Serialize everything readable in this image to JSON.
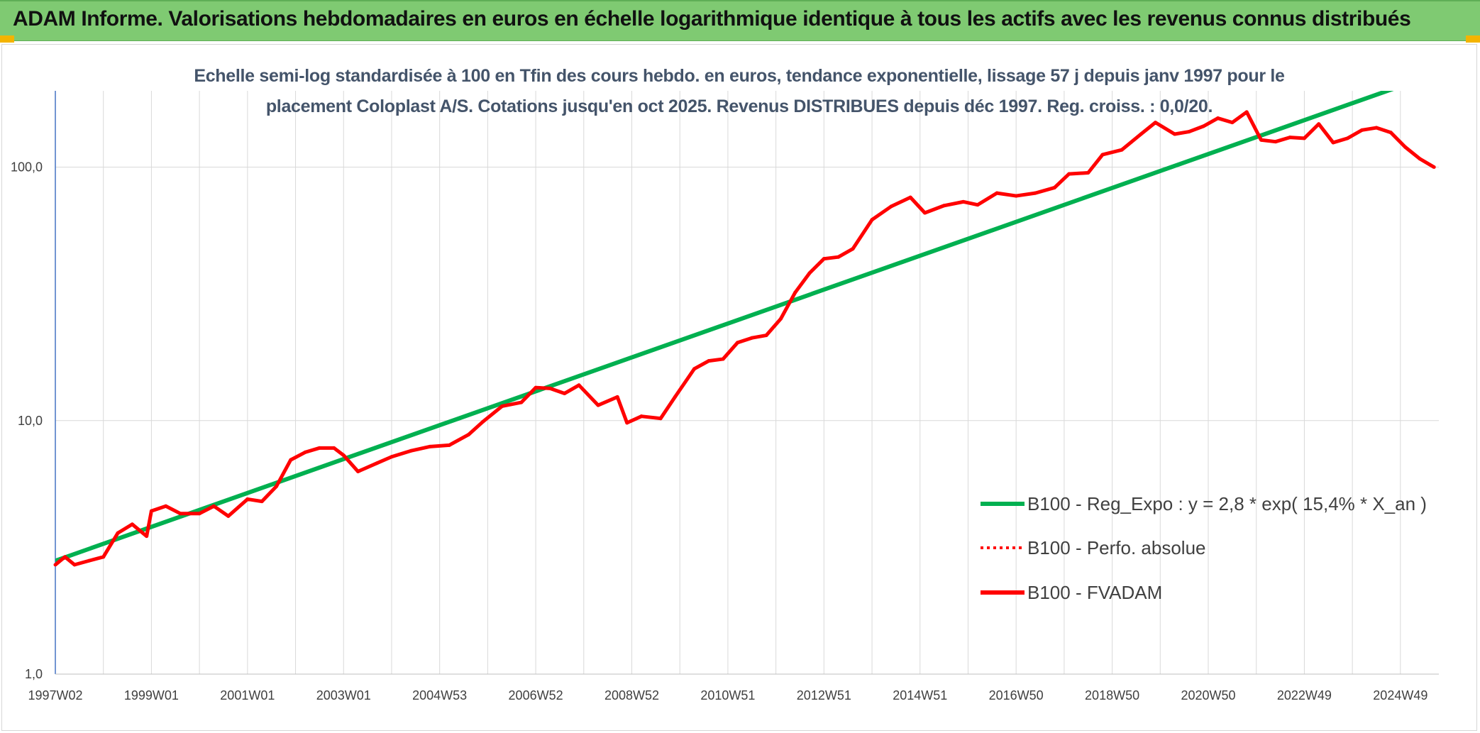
{
  "banner": {
    "title": "ADAM Informe. Valorisations hebdomadaires en euros en échelle logarithmique identique à tous les actifs avec les revenus connus distribués"
  },
  "colors": {
    "banner_bg": "#7fca72",
    "trend_line": "#00b050",
    "fvadam_line": "#ff0000",
    "corner_accent": "#f4b400"
  },
  "chart_data": {
    "type": "line",
    "title_lines": [
      "Echelle semi-log standardisée à 100 en Tfin des cours hebdo. en euros, tendance exponentielle, lissage 57 j depuis janv 1997 pour le",
      "placement Coloplast A/S. Cotations jusqu'en oct 2025. Revenus DISTRIBUES depuis déc 1997. Reg. croiss. : 0,0/20."
    ],
    "y_scale": "log",
    "ylim": [
      1,
      200
    ],
    "xlim": [
      1997.0,
      2025.8
    ],
    "y_ticks": [
      {
        "value": 1,
        "label": "1,0"
      },
      {
        "value": 10,
        "label": "10,0"
      },
      {
        "value": 100,
        "label": "100,0"
      }
    ],
    "x_ticks": [
      {
        "value": 1997.0,
        "label": "1997W02"
      },
      {
        "value": 1999.0,
        "label": "1999W01"
      },
      {
        "value": 2001.0,
        "label": "2001W01"
      },
      {
        "value": 2003.0,
        "label": "2003W01"
      },
      {
        "value": 2005.0,
        "label": "2004W53"
      },
      {
        "value": 2007.0,
        "label": "2006W52"
      },
      {
        "value": 2009.0,
        "label": "2008W52"
      },
      {
        "value": 2011.0,
        "label": "2010W51"
      },
      {
        "value": 2013.0,
        "label": "2012W51"
      },
      {
        "value": 2015.0,
        "label": "2014W51"
      },
      {
        "value": 2017.0,
        "label": "2016W50"
      },
      {
        "value": 2019.0,
        "label": "2018W50"
      },
      {
        "value": 2021.0,
        "label": "2020W50"
      },
      {
        "value": 2023.0,
        "label": "2022W49"
      },
      {
        "value": 2025.0,
        "label": "2024W49"
      }
    ],
    "grid": "vertical yearly + horizontal at decades",
    "legend_position": "right-center",
    "series": [
      {
        "name": "B100 - Reg_Expo : y = 2,8 * exp( 15,4% *  X_an )",
        "style": "solid",
        "color": "#00b050",
        "x": [
          1997.0,
          2025.2
        ],
        "y": [
          2.8,
          215
        ]
      },
      {
        "name": "B100 - Perfo. absolue",
        "style": "dotted",
        "color": "#ff0000",
        "x": [],
        "y": []
      },
      {
        "name": "B100 - FVADAM",
        "style": "solid",
        "color": "#ff0000",
        "x": [
          1997.0,
          1997.2,
          1997.4,
          1997.7,
          1998.0,
          1998.3,
          1998.6,
          1998.9,
          1999.0,
          1999.3,
          1999.6,
          2000.0,
          2000.3,
          2000.6,
          2001.0,
          2001.3,
          2001.6,
          2001.9,
          2002.2,
          2002.5,
          2002.8,
          2003.0,
          2003.3,
          2003.7,
          2004.0,
          2004.4,
          2004.8,
          2005.2,
          2005.6,
          2005.9,
          2006.3,
          2006.7,
          2007.0,
          2007.3,
          2007.6,
          2007.9,
          2008.3,
          2008.7,
          2008.9,
          2009.2,
          2009.6,
          2009.9,
          2010.3,
          2010.6,
          2010.9,
          2011.2,
          2011.5,
          2011.8,
          2012.1,
          2012.4,
          2012.7,
          2013.0,
          2013.3,
          2013.6,
          2014.0,
          2014.4,
          2014.8,
          2015.1,
          2015.5,
          2015.9,
          2016.2,
          2016.6,
          2017.0,
          2017.4,
          2017.8,
          2018.1,
          2018.5,
          2018.8,
          2019.2,
          2019.6,
          2019.9,
          2020.3,
          2020.6,
          2020.9,
          2021.2,
          2021.5,
          2021.8,
          2022.1,
          2022.4,
          2022.7,
          2023.0,
          2023.3,
          2023.6,
          2023.9,
          2024.2,
          2024.5,
          2024.8,
          2025.1,
          2025.4,
          2025.7
        ],
        "y": [
          2.7,
          2.9,
          2.7,
          2.8,
          2.9,
          3.6,
          3.9,
          3.5,
          4.4,
          4.6,
          4.3,
          4.3,
          4.6,
          4.2,
          4.9,
          4.8,
          5.5,
          7.0,
          7.5,
          7.8,
          7.8,
          7.3,
          6.3,
          6.8,
          7.2,
          7.6,
          7.9,
          8.0,
          8.8,
          9.9,
          11.4,
          11.8,
          13.5,
          13.4,
          12.8,
          13.8,
          11.5,
          12.4,
          9.8,
          10.4,
          10.2,
          12.4,
          16.0,
          17.2,
          17.5,
          20.3,
          21.2,
          21.7,
          25.2,
          32.0,
          38.2,
          43.5,
          44.2,
          47.6,
          62.0,
          70.0,
          76.0,
          66.0,
          70.5,
          73.0,
          71.0,
          79.0,
          77.0,
          79.0,
          83.0,
          94.0,
          95.0,
          112.0,
          117.0,
          135.0,
          150.0,
          135.0,
          138.0,
          145.0,
          156.0,
          150.0,
          165.0,
          128.0,
          126.0,
          131.0,
          130.0,
          148.0,
          125.0,
          130.0,
          140.0,
          143.0,
          137.0,
          120.0,
          108.0,
          100.0
        ]
      }
    ]
  }
}
